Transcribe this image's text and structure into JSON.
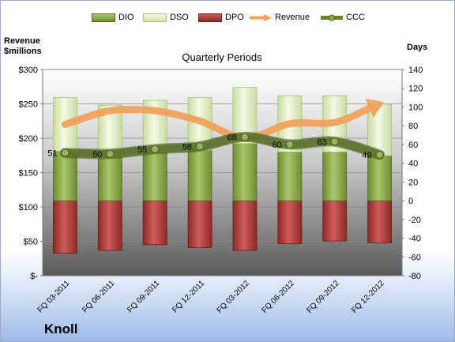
{
  "legend": {
    "dio": "DIO",
    "dso": "DSO",
    "dpo": "DPO",
    "revenue": "Revenue",
    "ccc": "CCC"
  },
  "company_name": "Knoll",
  "chart_data": {
    "type": "bar",
    "title": "Quarterly Periods",
    "left_axis_title": [
      "Revenue",
      "$millions"
    ],
    "right_axis_title": "Days",
    "categories": [
      "FQ 03-2011",
      "FQ 06-2011",
      "FQ 09-2011",
      "FQ 12-2011",
      "FQ 03-2012",
      "FQ 06-2012",
      "FQ 09-2012",
      "FQ 12-2012"
    ],
    "left_axis": {
      "range": [
        0,
        300
      ],
      "ticks": [
        0,
        50,
        100,
        150,
        200,
        250,
        300
      ],
      "tick_labels": [
        "$-",
        "$50",
        "$100",
        "$150",
        "$200",
        "$250",
        "$300"
      ]
    },
    "right_axis": {
      "range": [
        -80,
        140
      ],
      "ticks": [
        -80,
        -60,
        -40,
        -20,
        0,
        20,
        40,
        60,
        80,
        100,
        120,
        140
      ]
    },
    "series": [
      {
        "name": "DIO",
        "axis": "right",
        "kind": "stacked-bar",
        "color": "#8fb14a",
        "values": [
          53,
          51,
          52,
          54,
          61,
          52,
          52,
          48
        ]
      },
      {
        "name": "DSO",
        "axis": "right",
        "kind": "stacked-bar",
        "color": "#e0eec4",
        "values": [
          57,
          51,
          55,
          56,
          60,
          60,
          60,
          55
        ]
      },
      {
        "name": "DPO",
        "axis": "right",
        "kind": "negative-bar",
        "color": "#b33d3c",
        "values": [
          -56,
          -53,
          -47,
          -50,
          -53,
          -46,
          -43,
          -45
        ]
      },
      {
        "name": "Revenue",
        "axis": "left",
        "kind": "line",
        "color": "#f0a05a",
        "values": [
          220,
          240,
          240,
          225,
          200,
          221,
          223,
          250
        ]
      },
      {
        "name": "CCC",
        "axis": "right",
        "kind": "line",
        "color": "#5f7530",
        "values": [
          51,
          50,
          55,
          58,
          68,
          60,
          63,
          49
        ]
      }
    ],
    "data_labels": {
      "series": "CCC",
      "values": [
        "51",
        "50",
        "55",
        "58",
        "68",
        "60",
        "63",
        "49"
      ]
    },
    "grid": true,
    "legend_position": "top"
  }
}
